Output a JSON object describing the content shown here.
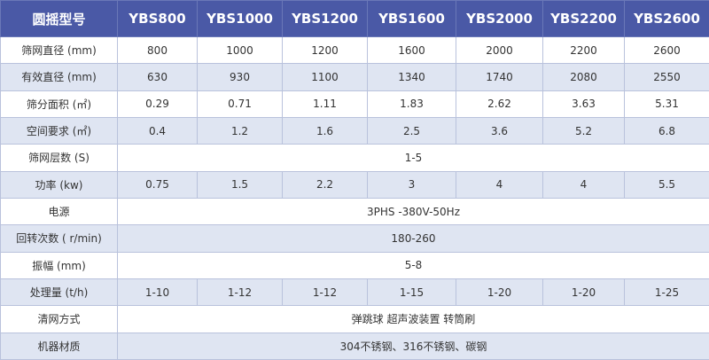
{
  "table": {
    "header": [
      "圆摇型号",
      "YBS800",
      "YBS1000",
      "YBS1200",
      "YBS1600",
      "YBS2000",
      "YBS2200",
      "YBS2600"
    ],
    "rows": [
      [
        "筛网直径 (mm)",
        "800",
        "1000",
        "1200",
        "1600",
        "2000",
        "2200",
        "2600"
      ],
      [
        "有效直径 (mm)",
        "630",
        "930",
        "1100",
        "1340",
        "1740",
        "2080",
        "2550"
      ],
      [
        "筛分面积 (㎡)",
        "0.29",
        "0.71",
        "1.11",
        "1.83",
        "2.62",
        "3.63",
        "5.31"
      ],
      [
        "空间要求 (㎡)",
        "0.4",
        "1.2",
        "1.6",
        "2.5",
        "3.6",
        "5.2",
        "6.8"
      ],
      [
        "筛网层数 (S)",
        "1-5"
      ],
      [
        "功率 (kw)",
        "0.75",
        "1.5",
        "2.2",
        "3",
        "4",
        "4",
        "5.5"
      ],
      [
        "电源",
        "3PHS -380V-50Hz"
      ],
      [
        "回转次数 ( r/min)",
        "180-260"
      ],
      [
        "振幅 (mm)",
        "5-8"
      ],
      [
        "处理量 (t/h)",
        "1-10",
        "1-12",
        "1-12",
        "1-15",
        "1-20",
        "1-20",
        "1-25"
      ],
      [
        "清网方式",
        "弹跳球 超声波装置 转筒刷"
      ],
      [
        "机器材质",
        "304不锈钢、316不锈钢、碳钢"
      ]
    ]
  }
}
